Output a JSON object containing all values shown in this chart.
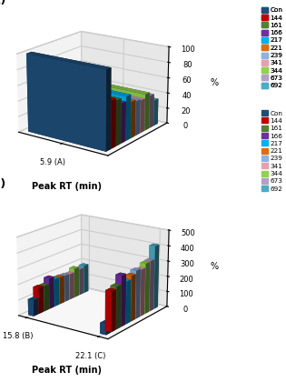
{
  "panel_A": {
    "title": "(A)",
    "xlabel": "Peak RT (min)",
    "ylabel": "%",
    "ylim": [
      0,
      100
    ],
    "yticks": [
      0,
      20,
      40,
      60,
      80,
      100
    ],
    "xtick_labels": [
      "5.9 (A)"
    ],
    "bars": [
      100,
      60,
      57,
      50,
      56,
      46,
      44,
      42,
      47,
      42,
      33
    ]
  },
  "panel_B": {
    "title": "(B)",
    "xlabel": "Peak RT (min)",
    "ylabel": "%",
    "ylim": [
      0,
      500
    ],
    "yticks": [
      0,
      100,
      200,
      300,
      400,
      500
    ],
    "xtick_labels": [
      "15.8 (B)",
      "22.1 (C)"
    ],
    "bars_15_8": [
      103,
      168,
      165,
      200,
      180,
      178,
      175,
      170,
      193,
      175,
      185
    ],
    "bars_22_1": [
      68,
      253,
      267,
      320,
      270,
      290,
      308,
      300,
      325,
      328,
      410
    ]
  },
  "colors": [
    "#1f4e79",
    "#c00000",
    "#538135",
    "#7030a0",
    "#00b0f0",
    "#e26b0a",
    "#8db3e2",
    "#e6a0b0",
    "#92d050",
    "#b2a1c7",
    "#4bacc6"
  ],
  "legend_labels": [
    "Con",
    "144",
    "161",
    "166",
    "217",
    "221",
    "239",
    "341",
    "344",
    "673",
    "692"
  ],
  "background_color": "#ffffff"
}
